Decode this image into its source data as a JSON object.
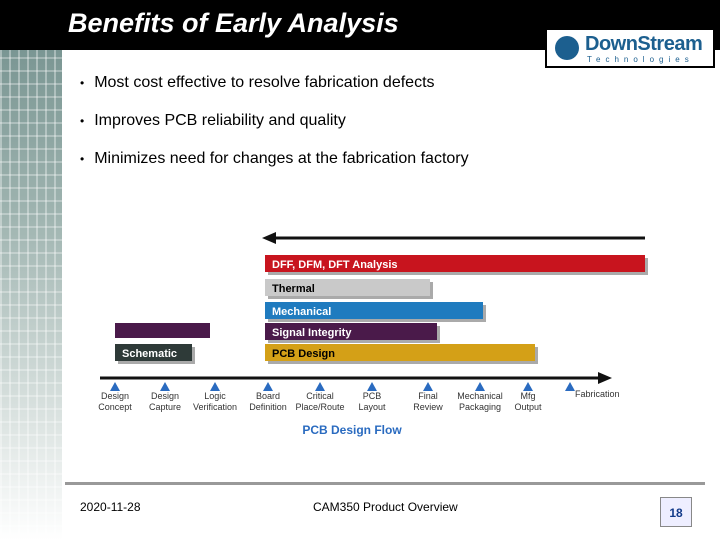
{
  "header": {
    "title": "Benefits of Early Analysis"
  },
  "logo": {
    "name": "DownStream",
    "tagline": "Technologies"
  },
  "bullets": [
    "Most cost effective to resolve fabrication defects",
    "Improves PCB reliability and quality",
    "Minimizes need for changes at the fabrication factory"
  ],
  "diagram": {
    "bars": [
      "DFF, DFM, DFT Analysis",
      "Thermal",
      "Mechanical",
      "Signal Integrity",
      "Schematic",
      "PCB Design"
    ],
    "steps": [
      [
        "Design",
        "Concept"
      ],
      [
        "Design",
        "Capture"
      ],
      [
        "Logic",
        "Verification"
      ],
      [
        "Board",
        "Definition"
      ],
      [
        "Critical",
        "Place/Route"
      ],
      [
        "PCB",
        "Layout"
      ],
      [
        "Final",
        "Review"
      ],
      [
        "Mechanical",
        "Packaging"
      ],
      [
        "Mfg",
        "Output"
      ],
      [
        "Fabrication"
      ]
    ],
    "flow_title": "PCB Design Flow"
  },
  "footer": {
    "date": "2020-11-28",
    "title": "CAM350 Product Overview",
    "page": "18"
  }
}
